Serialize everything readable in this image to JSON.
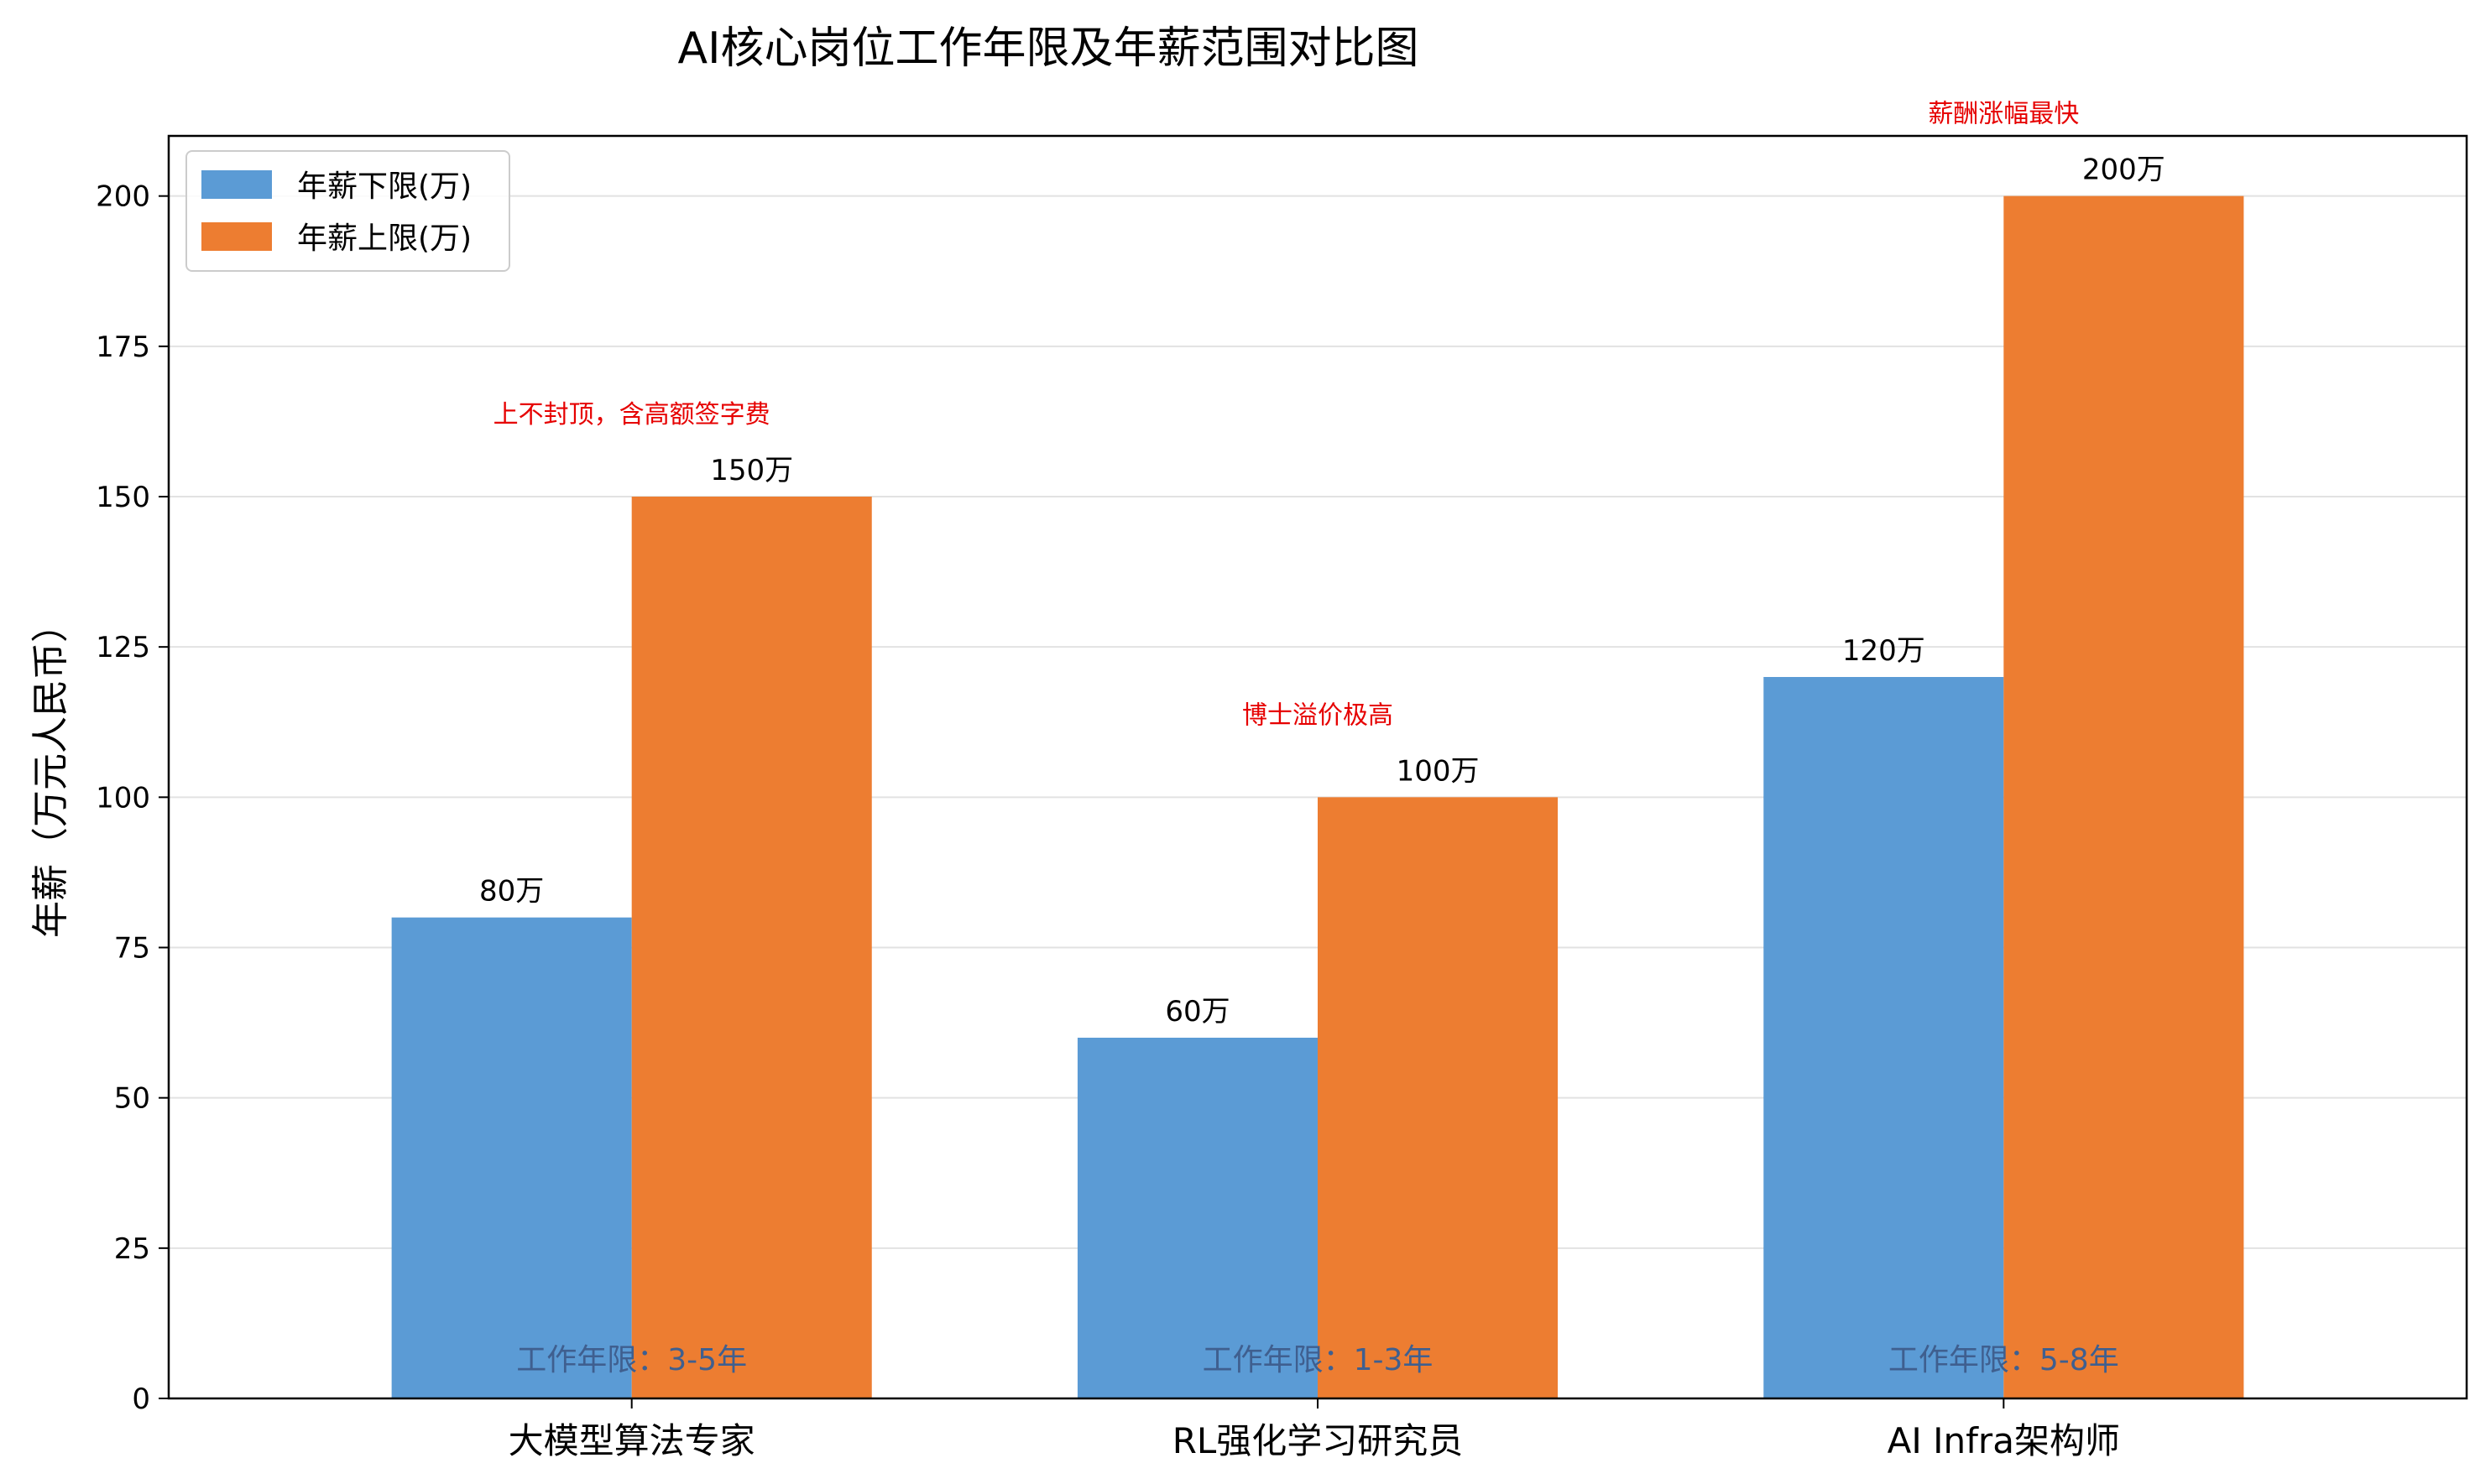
{
  "chart_data": {
    "type": "bar",
    "title": "AI核心岗位工作年限及年薪范围对比图",
    "xlabel": "",
    "ylabel": "年薪（万元人民币）",
    "ylim": [
      0,
      210
    ],
    "yticks": [
      0,
      25,
      50,
      75,
      100,
      125,
      150,
      175,
      200
    ],
    "grid": "horizontal",
    "legend_position": "upper-left",
    "categories": [
      "大模型算法专家",
      "RL强化学习研究员",
      "AI Infra架构师"
    ],
    "series": [
      {
        "name": "年薪下限(万)",
        "color": "#5b9bd5",
        "values": [
          80,
          60,
          120
        ],
        "labels": [
          "80万",
          "60万",
          "120万"
        ]
      },
      {
        "name": "年薪上限(万)",
        "color": "#ed7d31",
        "values": [
          150,
          100,
          200
        ],
        "labels": [
          "150万",
          "100万",
          "200万"
        ]
      }
    ],
    "annotations": [
      "上不封顶，含高额签字费",
      "博士溢价极高",
      "薪酬涨幅最快"
    ],
    "annotation_color": "#e60000",
    "experience_labels": [
      "工作年限：3-5年",
      "工作年限：1-3年",
      "工作年限：5-8年"
    ],
    "experience_color": "#3f5f8f"
  }
}
